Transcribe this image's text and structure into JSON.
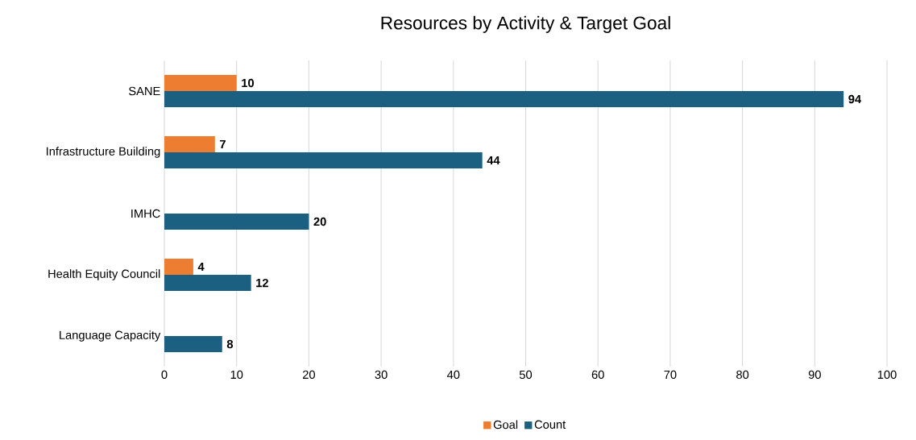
{
  "chart_data": {
    "type": "bar",
    "orientation": "horizontal",
    "title": "Resources by Activity & Target Goal",
    "categories": [
      "SANE",
      "Infrastructure Building",
      "IMHC",
      "Health Equity Council",
      "Language Capacity"
    ],
    "series": [
      {
        "name": "Goal",
        "color": "#ed7d31",
        "values": [
          10,
          7,
          null,
          4,
          null
        ]
      },
      {
        "name": "Count",
        "color": "#1b6080",
        "values": [
          94,
          44,
          20,
          12,
          8
        ]
      }
    ],
    "xlim": [
      0,
      100
    ],
    "xticks": [
      0,
      10,
      20,
      30,
      40,
      50,
      60,
      70,
      80,
      90,
      100
    ],
    "data_labels": true,
    "grid": "x",
    "legend": "bottom"
  }
}
